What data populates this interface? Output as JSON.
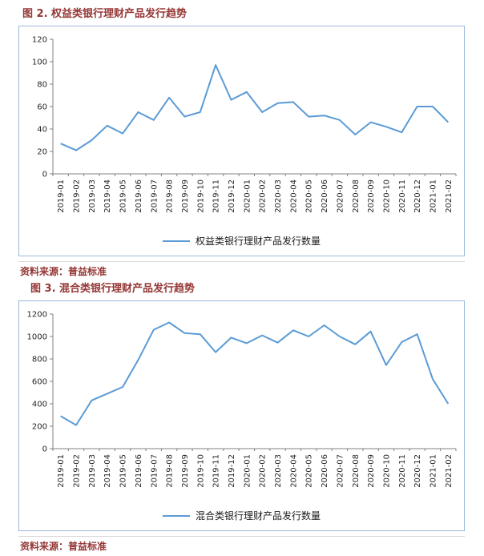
{
  "colors": {
    "series_line": "#5b9bd5",
    "title_text": "#943634",
    "frame_border": "#9cb8d9",
    "source_text": "#943634",
    "axis": "#808080",
    "divider": "#d9d9d9"
  },
  "figures": [
    {
      "title": "图 2.  权益类银行理财产品发行趋势",
      "source": "资料来源：普益标准"
    },
    {
      "title": "图 3.  混合类银行理财产品发行趋势",
      "source": "资料来源：普益标准"
    }
  ],
  "chart_data": [
    {
      "type": "line",
      "title": "权益类银行理财产品发行趋势",
      "legend": "权益类银行理财产品发行数量",
      "x": [
        "2019-01",
        "2019-02",
        "2019-03",
        "2019-04",
        "2019-05",
        "2019-06",
        "2019-07",
        "2019-08",
        "2019-09",
        "2019-10",
        "2019-11",
        "2019-12",
        "2020-01",
        "2020-02",
        "2020-03",
        "2020-04",
        "2020-05",
        "2020-06",
        "2020-07",
        "2020-08",
        "2020-09",
        "2020-10",
        "2020-11",
        "2020-12",
        "2021-01",
        "2021-02"
      ],
      "values": [
        27,
        21,
        30,
        43,
        36,
        55,
        48,
        68,
        51,
        55,
        97,
        66,
        73,
        55,
        63,
        64,
        51,
        52,
        48,
        35,
        46,
        42,
        37,
        60,
        60,
        46
      ],
      "ylim": [
        0,
        120
      ],
      "yticks": [
        0,
        20,
        40,
        60,
        80,
        100,
        120
      ],
      "grid": false,
      "legend_position": "bottom",
      "line_color": "#5b9bd5"
    },
    {
      "type": "line",
      "title": "混合类银行理财产品发行趋势",
      "legend": "混合类银行理财产品发行数量",
      "x": [
        "2019-01",
        "2019-02",
        "2019-03",
        "2019-04",
        "2019-05",
        "2019-06",
        "2019-07",
        "2019-08",
        "2019-09",
        "2019-10",
        "2019-11",
        "2019-12",
        "2020-01",
        "2020-02",
        "2020-03",
        "2020-04",
        "2020-05",
        "2020-06",
        "2020-07",
        "2020-08",
        "2020-09",
        "2020-10",
        "2020-11",
        "2020-12",
        "2021-01",
        "2021-02"
      ],
      "values": [
        290,
        210,
        430,
        490,
        550,
        790,
        1060,
        1125,
        1030,
        1020,
        860,
        990,
        940,
        1010,
        945,
        1055,
        1000,
        1100,
        1000,
        930,
        1045,
        745,
        950,
        1020,
        620,
        400
      ],
      "ylim": [
        0,
        1200
      ],
      "yticks": [
        0,
        200,
        400,
        600,
        800,
        1000,
        1200
      ],
      "grid": false,
      "legend_position": "bottom",
      "line_color": "#5b9bd5"
    }
  ]
}
